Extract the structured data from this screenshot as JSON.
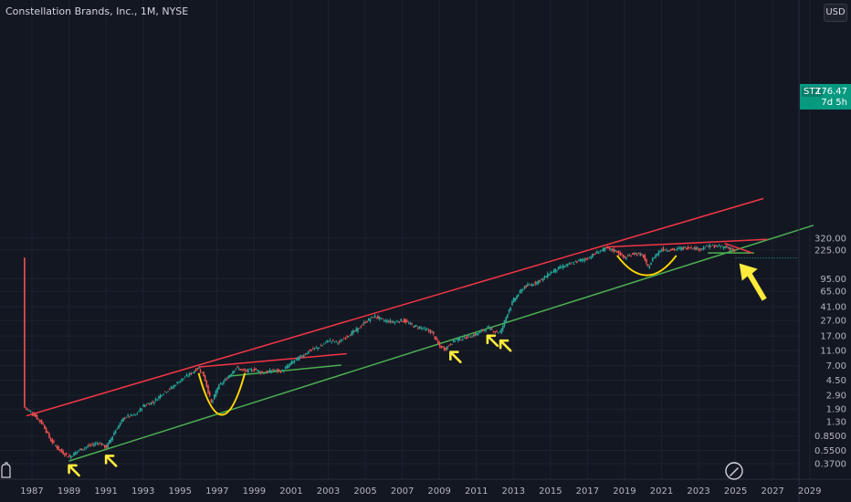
{
  "header": {
    "title": "Constellation Brands, Inc., 1M, NYSE",
    "currency": "USD"
  },
  "price_tag": {
    "symbol": "STZ",
    "price": "176.47",
    "countdown": "7d 5h"
  },
  "colors": {
    "background": "#131722",
    "up": "#26a69a",
    "down": "#ef5350",
    "upper_trend": "#f23645",
    "lower_trend": "#4caf50",
    "cup": "#ffd600",
    "arrows": "#ffeb3b",
    "tag": "#089981"
  },
  "icons": [
    "tradingview-logo-icon",
    "pen-watermark-icon"
  ],
  "chart_data": {
    "type": "candlestick",
    "title": "Constellation Brands, Inc., 1M, NYSE",
    "scale": "log",
    "x_ticks": [
      1987,
      1989,
      1991,
      1993,
      1995,
      1997,
      1999,
      2001,
      2003,
      2005,
      2007,
      2009,
      2011,
      2013,
      2015,
      2017,
      2019,
      2021,
      2023,
      2025,
      2027,
      2029
    ],
    "y_ticks": [
      320.0,
      225.0,
      95.0,
      65.0,
      41.0,
      27.0,
      17.0,
      11.0,
      7.0,
      4.5,
      2.9,
      1.9,
      1.3,
      0.85,
      0.55,
      0.37
    ],
    "y_tick_labels": [
      "320.00",
      "225.00",
      "95.00",
      "65.00",
      "41.00",
      "27.00",
      "17.00",
      "11.00",
      "7.00",
      "4.50",
      "2.90",
      "1.90",
      "1.30",
      "0.8500",
      "0.5500",
      "0.3700"
    ],
    "xlim": [
      1986.0,
      2029.9
    ],
    "price_path": [
      [
        1986.6,
        2.0
      ],
      [
        1987.0,
        1.7
      ],
      [
        1987.6,
        1.2
      ],
      [
        1988.0,
        0.75
      ],
      [
        1988.5,
        0.55
      ],
      [
        1989.0,
        0.45
      ],
      [
        1989.5,
        0.55
      ],
      [
        1990.0,
        0.62
      ],
      [
        1990.6,
        0.7
      ],
      [
        1991.0,
        0.6
      ],
      [
        1991.5,
        1.0
      ],
      [
        1992.0,
        1.5
      ],
      [
        1992.6,
        1.6
      ],
      [
        1993.0,
        2.1
      ],
      [
        1993.6,
        2.4
      ],
      [
        1994.0,
        3.0
      ],
      [
        1994.6,
        3.7
      ],
      [
        1995.0,
        4.5
      ],
      [
        1995.6,
        5.6
      ],
      [
        1996.0,
        6.6
      ],
      [
        1996.3,
        5.0
      ],
      [
        1996.7,
        2.2
      ],
      [
        1997.0,
        3.6
      ],
      [
        1997.5,
        4.7
      ],
      [
        1998.0,
        6.6
      ],
      [
        1998.5,
        5.9
      ],
      [
        1999.0,
        6.3
      ],
      [
        1999.5,
        5.6
      ],
      [
        2000.0,
        6.1
      ],
      [
        2000.5,
        5.9
      ],
      [
        2001.0,
        7.6
      ],
      [
        2001.6,
        9.5
      ],
      [
        2002.0,
        11.0
      ],
      [
        2002.6,
        12.5
      ],
      [
        2003.0,
        15.0
      ],
      [
        2003.6,
        14.0
      ],
      [
        2004.0,
        17.0
      ],
      [
        2004.6,
        21.0
      ],
      [
        2005.0,
        26.0
      ],
      [
        2005.5,
        31.0
      ],
      [
        2006.0,
        27.0
      ],
      [
        2006.6,
        26.0
      ],
      [
        2007.0,
        27.5
      ],
      [
        2007.6,
        23.0
      ],
      [
        2008.0,
        22.0
      ],
      [
        2008.6,
        19.0
      ],
      [
        2009.0,
        12.5
      ],
      [
        2009.3,
        11.5
      ],
      [
        2009.8,
        15.0
      ],
      [
        2010.5,
        16.5
      ],
      [
        2011.0,
        18.0
      ],
      [
        2011.6,
        22.0
      ],
      [
        2012.0,
        19.5
      ],
      [
        2012.3,
        19.0
      ],
      [
        2012.7,
        35.0
      ],
      [
        2013.0,
        50.0
      ],
      [
        2013.6,
        75.0
      ],
      [
        2014.0,
        80.0
      ],
      [
        2014.6,
        95.0
      ],
      [
        2015.0,
        115.0
      ],
      [
        2015.6,
        135.0
      ],
      [
        2016.0,
        145.0
      ],
      [
        2016.6,
        165.0
      ],
      [
        2017.0,
        175.0
      ],
      [
        2017.6,
        215.0
      ],
      [
        2018.0,
        235.0
      ],
      [
        2018.6,
        215.0
      ],
      [
        2019.0,
        175.0
      ],
      [
        2019.5,
        205.0
      ],
      [
        2020.0,
        190.0
      ],
      [
        2020.25,
        130.0
      ],
      [
        2020.6,
        185.0
      ],
      [
        2021.0,
        230.0
      ],
      [
        2021.6,
        225.0
      ],
      [
        2022.0,
        235.0
      ],
      [
        2022.6,
        245.0
      ],
      [
        2023.0,
        230.0
      ],
      [
        2023.6,
        255.0
      ],
      [
        2024.0,
        250.0
      ],
      [
        2024.5,
        245.0
      ],
      [
        2024.9,
        225.0
      ],
      [
        2025.0,
        176.47
      ]
    ],
    "last_price": 176.47,
    "trendlines": [
      {
        "name": "upper-channel",
        "color": "#f23645",
        "from": [
          1986.7,
          1.55
        ],
        "to": [
          2026.5,
          1050
        ]
      },
      {
        "name": "lower-channel",
        "color": "#4caf50",
        "from": [
          1989.0,
          0.4
        ],
        "to": [
          2029.2,
          470
        ]
      },
      {
        "name": "wedge-top-1996",
        "color": "#f23645",
        "from": [
          1996.0,
          6.7
        ],
        "to": [
          2004.0,
          10.0
        ]
      },
      {
        "name": "wedge-bottom-1996",
        "color": "#4caf50",
        "from": [
          1997.6,
          5.1
        ],
        "to": [
          2003.7,
          7.1
        ]
      },
      {
        "name": "wedge-top-2018",
        "color": "#f23645",
        "from": [
          2018.0,
          245
        ],
        "to": [
          2026.7,
          308
        ]
      },
      {
        "name": "wedge-bottom-2018",
        "color": "#4caf50",
        "from": [
          2023.5,
          205
        ],
        "to": [
          2026.0,
          205
        ]
      },
      {
        "name": "wedge-close-2024",
        "color": "#f23645",
        "from": [
          2024.4,
          275
        ],
        "to": [
          2025.9,
          205
        ]
      }
    ],
    "cup_patterns": [
      {
        "name": "cup-1996",
        "x_range": [
          1996.0,
          1998.5
        ],
        "top": 5.6,
        "bottom": 1.6
      },
      {
        "name": "cup-2019",
        "x_range": [
          2018.6,
          2021.8
        ],
        "top": 190,
        "bottom": 105
      }
    ],
    "marker_arrows": [
      1989.0,
      1991.0,
      2009.6,
      2011.6,
      2012.3
    ],
    "big_arrow": [
      2025.2,
      150
    ]
  }
}
